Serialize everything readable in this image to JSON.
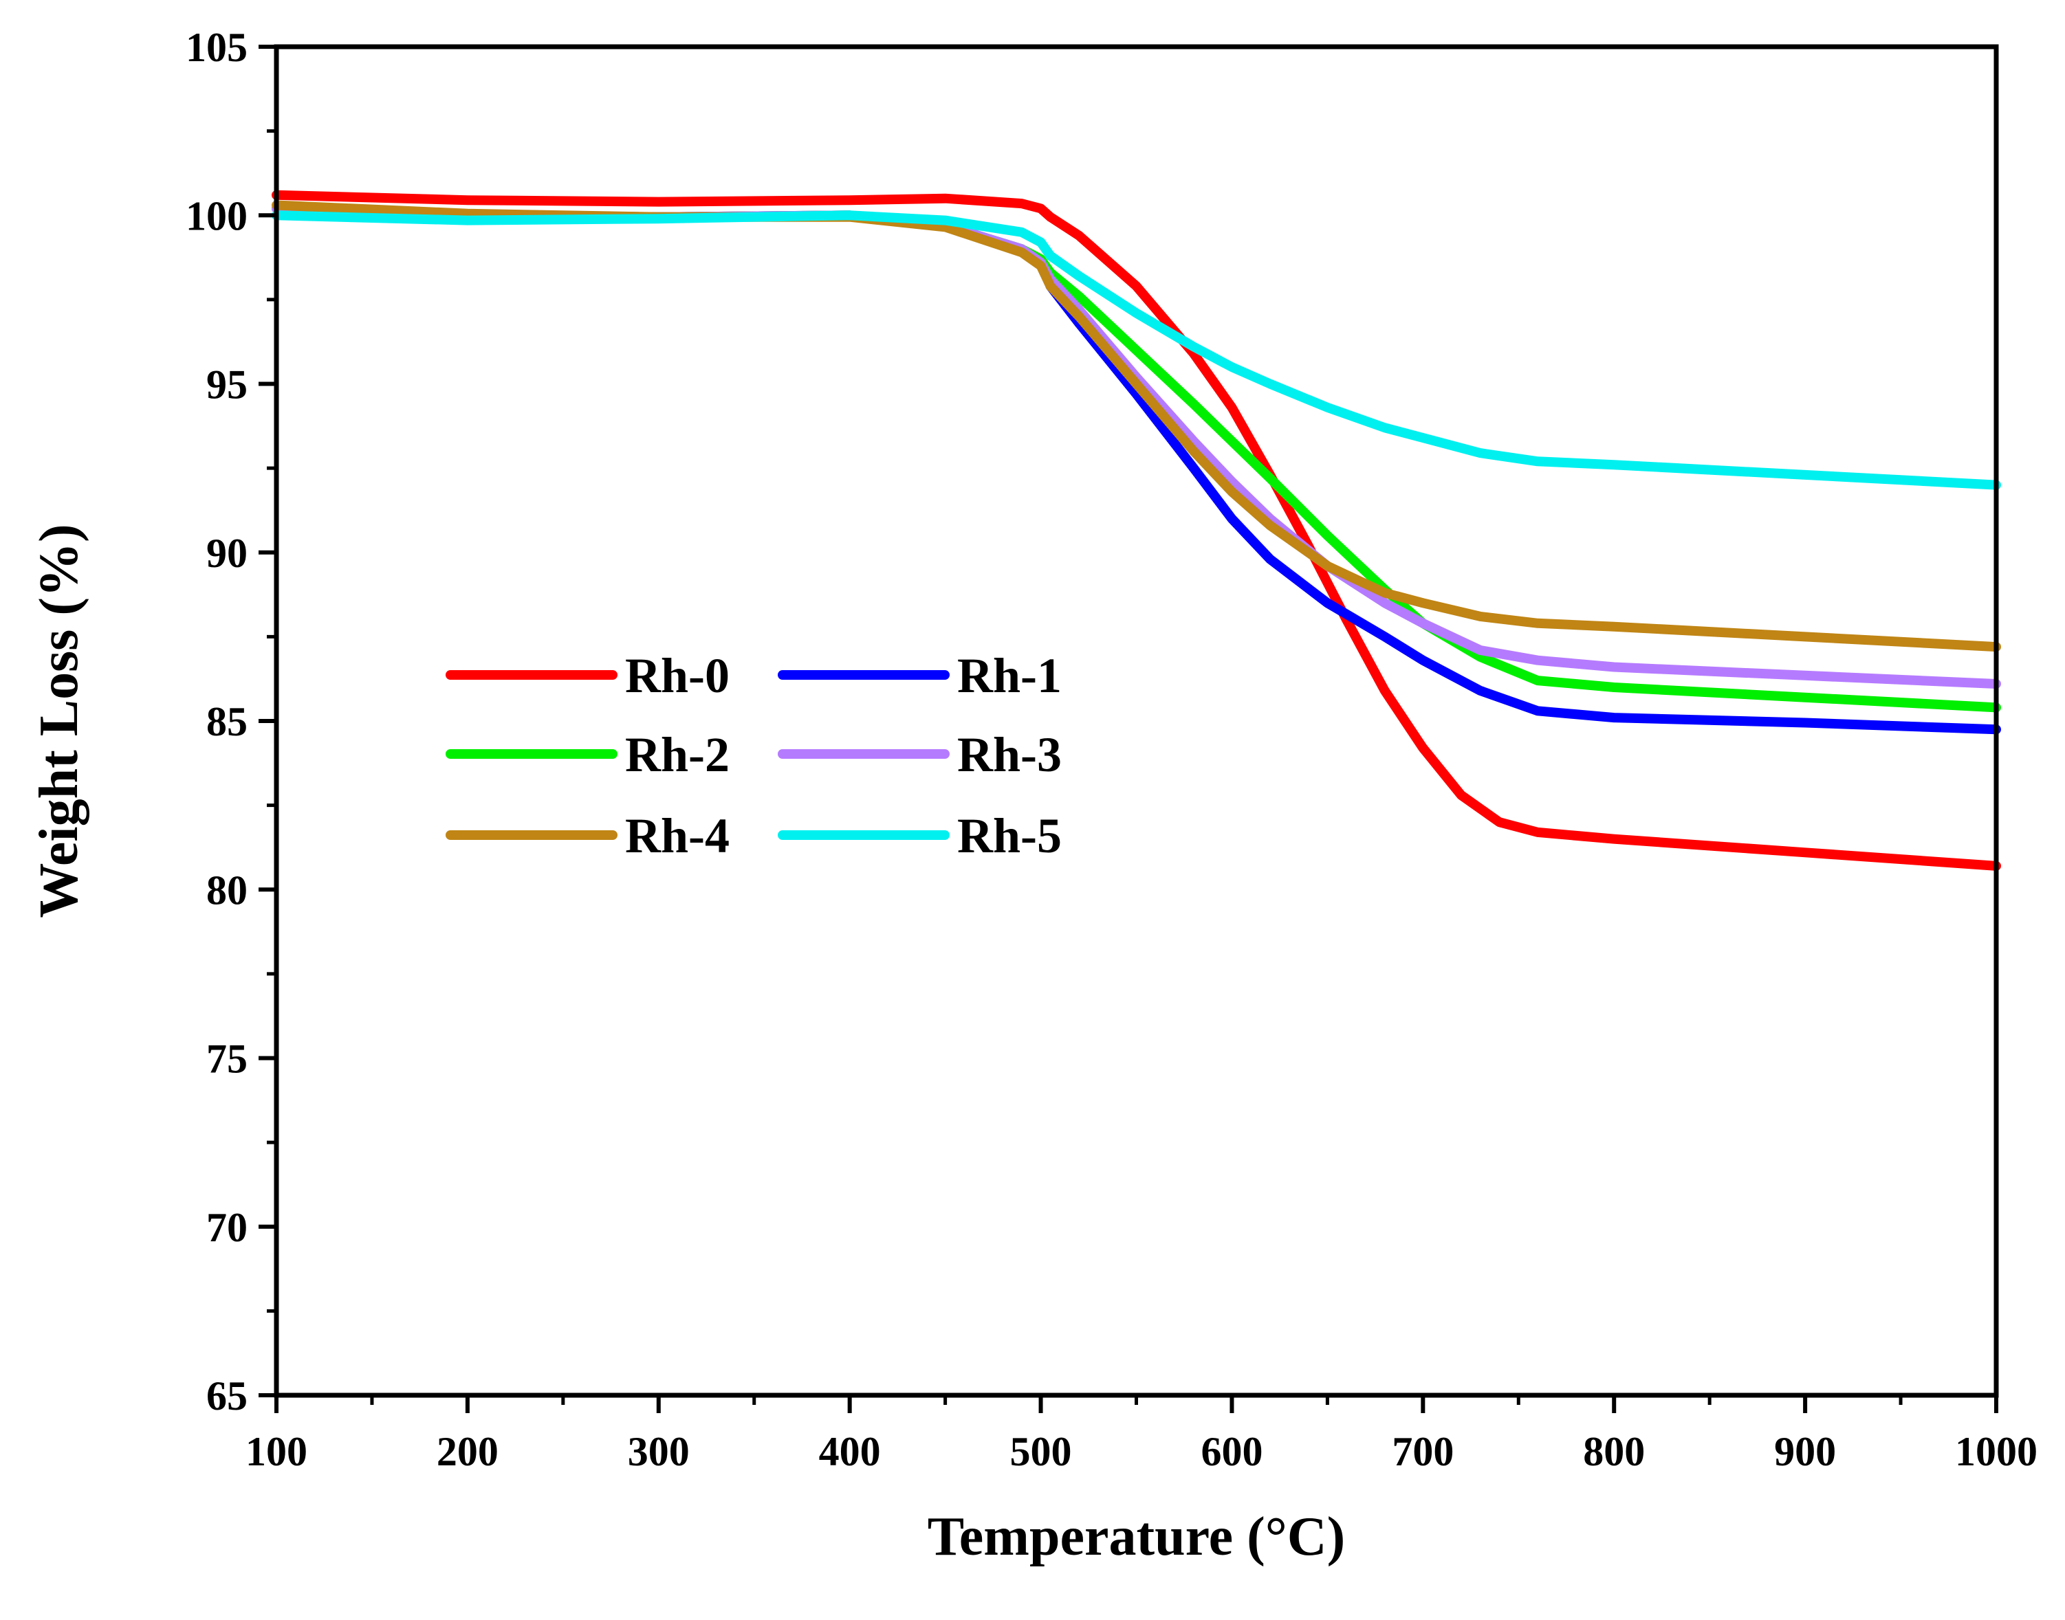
{
  "chart_data": {
    "type": "line",
    "title": "",
    "xlabel": "Temperature (°C)",
    "ylabel": "Weight Loss (%)",
    "xlim": [
      100,
      1000
    ],
    "ylim": [
      65,
      105
    ],
    "xticks": [
      100,
      200,
      300,
      400,
      500,
      600,
      700,
      800,
      900,
      1000
    ],
    "yticks": [
      65,
      70,
      75,
      80,
      85,
      90,
      95,
      100,
      105
    ],
    "grid": false,
    "legend_position": "center-left",
    "series": [
      {
        "name": "Rh-0",
        "color": "#ff0000",
        "x": [
          100,
          200,
          300,
          400,
          450,
          490,
          500,
          505,
          520,
          550,
          580,
          600,
          620,
          640,
          660,
          680,
          700,
          720,
          740,
          760,
          800,
          900,
          1000
        ],
        "y": [
          100.6,
          100.45,
          100.4,
          100.45,
          100.5,
          100.35,
          100.2,
          99.95,
          99.4,
          97.9,
          95.9,
          94.3,
          92.3,
          90.2,
          88.0,
          85.9,
          84.2,
          82.8,
          82.0,
          81.7,
          81.5,
          81.1,
          80.7
        ]
      },
      {
        "name": "Rh-1",
        "color": "#0000ff",
        "x": [
          100,
          200,
          300,
          400,
          450,
          490,
          500,
          505,
          520,
          550,
          580,
          600,
          620,
          650,
          680,
          700,
          730,
          760,
          800,
          900,
          1000
        ],
        "y": [
          100.2,
          100.0,
          99.95,
          100.0,
          99.7,
          99.0,
          98.6,
          97.9,
          96.8,
          94.7,
          92.5,
          91.0,
          89.8,
          88.5,
          87.5,
          86.8,
          85.9,
          85.3,
          85.1,
          84.95,
          84.75
        ]
      },
      {
        "name": "Rh-2",
        "color": "#00ee00",
        "x": [
          100,
          200,
          300,
          400,
          450,
          490,
          500,
          505,
          520,
          550,
          580,
          600,
          620,
          650,
          680,
          700,
          730,
          760,
          800,
          900,
          1000
        ],
        "y": [
          100.2,
          100.0,
          99.95,
          100.0,
          99.7,
          99.0,
          98.7,
          98.3,
          97.6,
          96.0,
          94.4,
          93.3,
          92.2,
          90.5,
          88.9,
          87.9,
          86.9,
          86.2,
          86.0,
          85.7,
          85.4
        ]
      },
      {
        "name": "Rh-3",
        "color": "#b57bff",
        "x": [
          100,
          200,
          300,
          400,
          450,
          490,
          500,
          505,
          520,
          550,
          580,
          600,
          620,
          650,
          680,
          700,
          730,
          760,
          800,
          900,
          1000
        ],
        "y": [
          100.2,
          100.0,
          99.95,
          100.0,
          99.7,
          99.0,
          98.6,
          98.1,
          97.2,
          95.2,
          93.3,
          92.1,
          91.0,
          89.6,
          88.5,
          87.9,
          87.1,
          86.8,
          86.6,
          86.35,
          86.1
        ]
      },
      {
        "name": "Rh-4",
        "color": "#c08515",
        "x": [
          100,
          200,
          300,
          400,
          450,
          490,
          500,
          505,
          520,
          550,
          580,
          600,
          620,
          650,
          680,
          700,
          730,
          760,
          800,
          900,
          1000
        ],
        "y": [
          100.3,
          100.05,
          99.95,
          99.95,
          99.65,
          98.9,
          98.5,
          97.9,
          97.0,
          95.0,
          93.0,
          91.8,
          90.8,
          89.6,
          88.8,
          88.5,
          88.1,
          87.9,
          87.8,
          87.5,
          87.2
        ]
      },
      {
        "name": "Rh-5",
        "color": "#00f0f0",
        "x": [
          100,
          200,
          300,
          400,
          450,
          490,
          500,
          505,
          520,
          550,
          580,
          600,
          620,
          650,
          680,
          700,
          730,
          760,
          800,
          900,
          1000
        ],
        "y": [
          100.0,
          99.85,
          99.9,
          100.0,
          99.85,
          99.5,
          99.2,
          98.8,
          98.2,
          97.1,
          96.1,
          95.5,
          95.0,
          94.3,
          93.7,
          93.4,
          92.95,
          92.7,
          92.6,
          92.3,
          92.0
        ]
      }
    ]
  }
}
